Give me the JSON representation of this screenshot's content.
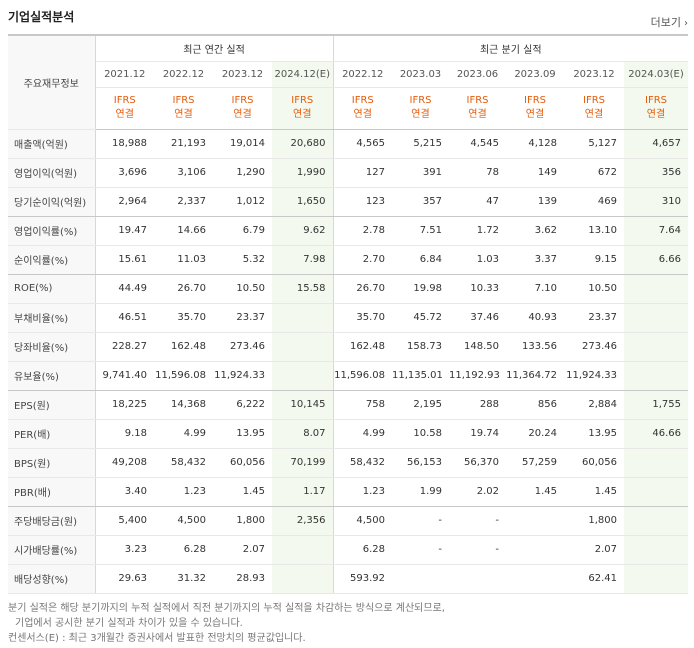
{
  "title": "기업실적분석",
  "more_label": "더보기",
  "row_header_label": "주요재무정보",
  "annual_group": "최근 연간 실적",
  "quarter_group": "최근 분기 실적",
  "annual_periods": [
    "2021.12",
    "2022.12",
    "2023.12",
    "2024.12(E)"
  ],
  "quarter_periods": [
    "2022.12",
    "2023.03",
    "2023.06",
    "2023.09",
    "2023.12",
    "2024.03(E)"
  ],
  "basis_line1": "IFRS",
  "basis_line2": "연결",
  "rows": [
    {
      "label": "매출액(억원)",
      "values": [
        "18,988",
        "21,193",
        "19,014",
        "20,680",
        "4,565",
        "5,215",
        "4,545",
        "4,128",
        "5,127",
        "4,657"
      ]
    },
    {
      "label": "영업이익(억원)",
      "values": [
        "3,696",
        "3,106",
        "1,290",
        "1,990",
        "127",
        "391",
        "78",
        "149",
        "672",
        "356"
      ]
    },
    {
      "label": "당기순이익(억원)",
      "values": [
        "2,964",
        "2,337",
        "1,012",
        "1,650",
        "123",
        "357",
        "47",
        "139",
        "469",
        "310"
      ]
    },
    {
      "label": "영업이익률(%)",
      "values": [
        "19.47",
        "14.66",
        "6.79",
        "9.62",
        "2.78",
        "7.51",
        "1.72",
        "3.62",
        "13.10",
        "7.64"
      ]
    },
    {
      "label": "순이익률(%)",
      "values": [
        "15.61",
        "11.03",
        "5.32",
        "7.98",
        "2.70",
        "6.84",
        "1.03",
        "3.37",
        "9.15",
        "6.66"
      ]
    },
    {
      "label": "ROE(%)",
      "values": [
        "44.49",
        "26.70",
        "10.50",
        "15.58",
        "26.70",
        "19.98",
        "10.33",
        "7.10",
        "10.50",
        ""
      ]
    },
    {
      "label": "부채비율(%)",
      "values": [
        "46.51",
        "35.70",
        "23.37",
        "",
        "35.70",
        "45.72",
        "37.46",
        "40.93",
        "23.37",
        ""
      ]
    },
    {
      "label": "당좌비율(%)",
      "values": [
        "228.27",
        "162.48",
        "273.46",
        "",
        "162.48",
        "158.73",
        "148.50",
        "133.56",
        "273.46",
        ""
      ]
    },
    {
      "label": "유보율(%)",
      "values": [
        "9,741.40",
        "11,596.08",
        "11,924.33",
        "",
        "11,596.08",
        "11,135.01",
        "11,192.93",
        "11,364.72",
        "11,924.33",
        ""
      ]
    },
    {
      "label": "EPS(원)",
      "values": [
        "18,225",
        "14,368",
        "6,222",
        "10,145",
        "758",
        "2,195",
        "288",
        "856",
        "2,884",
        "1,755"
      ]
    },
    {
      "label": "PER(배)",
      "values": [
        "9.18",
        "4.99",
        "13.95",
        "8.07",
        "4.99",
        "10.58",
        "19.74",
        "20.24",
        "13.95",
        "46.66"
      ]
    },
    {
      "label": "BPS(원)",
      "values": [
        "49,208",
        "58,432",
        "60,056",
        "70,199",
        "58,432",
        "56,153",
        "56,370",
        "57,259",
        "60,056",
        ""
      ]
    },
    {
      "label": "PBR(배)",
      "values": [
        "3.40",
        "1.23",
        "1.45",
        "1.17",
        "1.23",
        "1.99",
        "2.02",
        "1.45",
        "1.45",
        ""
      ]
    },
    {
      "label": "주당배당금(원)",
      "values": [
        "5,400",
        "4,500",
        "1,800",
        "2,356",
        "4,500",
        "-",
        "-",
        "",
        "1,800",
        ""
      ]
    },
    {
      "label": "시가배당률(%)",
      "values": [
        "3.23",
        "6.28",
        "2.07",
        "",
        "6.28",
        "-",
        "-",
        "",
        "2.07",
        ""
      ]
    },
    {
      "label": "배당성향(%)",
      "values": [
        "29.63",
        "31.32",
        "28.93",
        "",
        "593.92",
        "",
        "",
        "",
        "62.41",
        ""
      ]
    }
  ],
  "notes": [
    "분기 실적은 해당 분기까지의 누적 실적에서 직전 분기까지의 누적 실적을 차감하는 방식으로 계산되므로,",
    "기업에서 공시한 분기 실적과 차이가 있을 수 있습니다.",
    "컨센서스(E) : 최근 3개월간 증권사에서 발표한 전망치의 평균값입니다."
  ]
}
